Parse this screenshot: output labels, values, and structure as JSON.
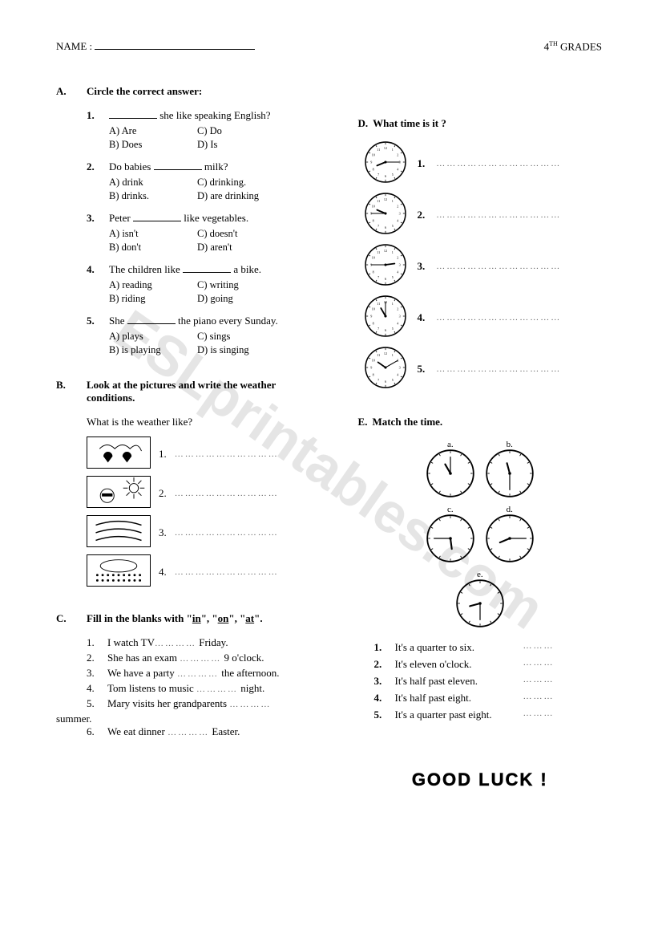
{
  "header": {
    "name_label": "NAME :",
    "grade": "4",
    "grade_suffix": "TH",
    "grade_word": " GRADES"
  },
  "watermark": "ESLprintables.com",
  "sectionA": {
    "letter": "A.",
    "title": "Circle the correct answer:",
    "questions": [
      {
        "num": "1.",
        "pre": "",
        "post": " she like speaking English?",
        "opts": [
          "A)  Are",
          "C)  Do",
          "B)  Does",
          "D)  Is"
        ]
      },
      {
        "num": "2.",
        "pre": "Do babies ",
        "post": " milk?",
        "opts": [
          "A)  drink",
          "C)  drinking.",
          "B)  drinks.",
          "D)  are drinking"
        ]
      },
      {
        "num": "3.",
        "pre": "Peter ",
        "post": " like vegetables.",
        "opts": [
          "A)  isn't",
          "C)  doesn't",
          "B)  don't",
          "D)  aren't"
        ]
      },
      {
        "num": "4.",
        "pre": "The children like ",
        "post": " a bike.",
        "opts": [
          "A)  reading",
          "C)  writing",
          "B)  riding",
          "D)  going"
        ]
      },
      {
        "num": "5.",
        "pre": "She ",
        "post": " the piano every Sunday.",
        "opts": [
          "A)  plays",
          "C)  sings",
          "B)  is playing",
          "D)  is singing"
        ]
      }
    ]
  },
  "sectionB": {
    "letter": "B.",
    "title": "Look at the pictures and write the weather conditions.",
    "subtitle": "What is the weather like?",
    "items": [
      {
        "num": "1.",
        "icon": "rainy"
      },
      {
        "num": "2.",
        "icon": "sunny"
      },
      {
        "num": "3.",
        "icon": "windy"
      },
      {
        "num": "4.",
        "icon": "snowy"
      }
    ]
  },
  "sectionC": {
    "letter": "C.",
    "title": "Fill in the blanks with \"in\", \"on\", \"at\".",
    "dots": "…………",
    "items": [
      {
        "num": "1.",
        "pre": "I watch TV",
        "post": " Friday."
      },
      {
        "num": "2.",
        "pre": "She has an exam ",
        "post": " 9 o'clock."
      },
      {
        "num": "3.",
        "pre": "We have a party ",
        "post": " the afternoon."
      },
      {
        "num": "4.",
        "pre": "Tom listens to music ",
        "post": " night."
      },
      {
        "num": "5.",
        "pre": "Mary visits her grandparents ",
        "post": " summer.",
        "wrap": true
      },
      {
        "num": "6.",
        "pre": "We eat dinner  ",
        "post": " Easter."
      }
    ]
  },
  "sectionD": {
    "letter": "D.",
    "title": "What time is it ?",
    "dots": "………………………………",
    "clocks": [
      {
        "num": "1.",
        "hour": 8,
        "minute": 15
      },
      {
        "num": "2.",
        "hour": 9,
        "minute": 45
      },
      {
        "num": "3.",
        "hour": 2,
        "minute": 45
      },
      {
        "num": "4.",
        "hour": 11,
        "minute": 0
      },
      {
        "num": "5.",
        "hour": 10,
        "minute": 10
      }
    ]
  },
  "sectionE": {
    "letter": "E.",
    "title": "Match the time.",
    "dots": "………",
    "clocks": [
      {
        "label": "a.",
        "hour": 11,
        "minute": 0
      },
      {
        "label": "b.",
        "hour": 11,
        "minute": 30
      },
      {
        "label": "c.",
        "hour": 5,
        "minute": 45
      },
      {
        "label": "d.",
        "hour": 8,
        "minute": 15
      },
      {
        "label": "e.",
        "hour": 8,
        "minute": 30
      }
    ],
    "items": [
      {
        "num": "1.",
        "text": "It's a quarter to six."
      },
      {
        "num": "2.",
        "text": "It's eleven o'clock."
      },
      {
        "num": "3.",
        "text": "It's half past eleven."
      },
      {
        "num": "4.",
        "text": "It's half past eight."
      },
      {
        "num": "5.",
        "text": "It's a quarter past eight."
      }
    ]
  },
  "footer": "GOOD LUCK !"
}
